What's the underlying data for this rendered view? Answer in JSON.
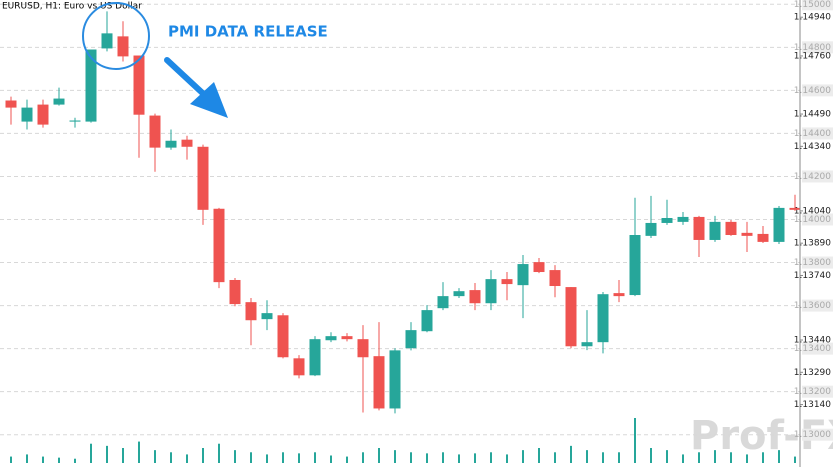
{
  "chart_data": {
    "type": "candlestick",
    "title": "EURUSD, H1:  Euro vs US Dollar",
    "annotation": "PMI DATA RELEASE",
    "watermark": "Prof-FX",
    "up_color": "#26a69a",
    "down_color": "#ef5350",
    "ylim": [
      1.1285,
      1.1502
    ],
    "yticks": [
      {
        "value": 1.15,
        "label": "1.15000"
      },
      {
        "value": 1.148,
        "label": "1.14800"
      },
      {
        "value": 1.146,
        "label": "1.14600"
      },
      {
        "value": 1.144,
        "label": "1.14400"
      },
      {
        "value": 1.142,
        "label": "1.14200"
      },
      {
        "value": 1.14,
        "label": "1.14000"
      },
      {
        "value": 1.138,
        "label": "1.13800"
      },
      {
        "value": 1.136,
        "label": "1.13600"
      },
      {
        "value": 1.134,
        "label": "1.13400"
      },
      {
        "value": 1.132,
        "label": "1.13200"
      },
      {
        "value": 1.13,
        "label": "1.13000"
      }
    ],
    "yticks_minor": [
      {
        "value": 1.1494,
        "label": "1.14940"
      },
      {
        "value": 1.1476,
        "label": "1.14760"
      },
      {
        "value": 1.1449,
        "label": "1.14490"
      },
      {
        "value": 1.1434,
        "label": "1.14340"
      },
      {
        "value": 1.1404,
        "label": "1.14040"
      },
      {
        "value": 1.1389,
        "label": "1.13890"
      },
      {
        "value": 1.1374,
        "label": "1.13740"
      },
      {
        "value": 1.1344,
        "label": "1.13440"
      },
      {
        "value": 1.1329,
        "label": "1.13290"
      },
      {
        "value": 1.1314,
        "label": "1.13140"
      }
    ],
    "grid": true,
    "open": [
      1.14553,
      1.14455,
      1.14534,
      1.14534,
      1.14455,
      1.14455,
      1.14795,
      1.14851,
      1.14762,
      1.14483,
      1.14334,
      1.14371,
      1.14338,
      1.1405,
      1.13719,
      1.13616,
      1.13537,
      1.13555,
      1.13355,
      1.13276,
      1.13439,
      1.13458,
      1.13444,
      1.13365,
      1.13122,
      1.13402,
      1.13481,
      1.13588,
      1.13644,
      1.13672,
      1.13611,
      1.13723,
      1.13695,
      1.13802,
      1.13765,
      1.13686,
      1.13411,
      1.1343,
      1.13658,
      1.13649,
      1.13924,
      1.13984,
      1.13989,
      1.14012,
      1.13905,
      1.13989,
      1.13938,
      1.13933,
      1.13896,
      1.14054
    ],
    "high": [
      1.14571,
      1.14557,
      1.14557,
      1.14613,
      1.14473,
      1.1479,
      1.14967,
      1.14921,
      1.14762,
      1.14492,
      1.14418,
      1.14389,
      1.14348,
      1.14054,
      1.13728,
      1.13635,
      1.13625,
      1.13565,
      1.1337,
      1.13458,
      1.13476,
      1.13472,
      1.13509,
      1.13523,
      1.13402,
      1.13523,
      1.13602,
      1.13709,
      1.13681,
      1.13705,
      1.13765,
      1.13756,
      1.13835,
      1.13821,
      1.13788,
      1.13686,
      1.13579,
      1.13663,
      1.13719,
      1.14101,
      1.1411,
      1.14092,
      1.14035,
      1.14017,
      1.14017,
      1.13998,
      1.13989,
      1.1397,
      1.14063,
      1.14115
    ],
    "low": [
      1.14441,
      1.14418,
      1.14427,
      1.14529,
      1.14427,
      1.1445,
      1.14781,
      1.14734,
      1.14287,
      1.14222,
      1.14324,
      1.14278,
      1.13975,
      1.13681,
      1.13597,
      1.13416,
      1.13486,
      1.13355,
      1.13262,
      1.13272,
      1.1343,
      1.13434,
      1.13103,
      1.13113,
      1.13099,
      1.13392,
      1.13476,
      1.13579,
      1.13635,
      1.13579,
      1.13579,
      1.13625,
      1.13542,
      1.13751,
      1.13639,
      1.13402,
      1.13393,
      1.13378,
      1.13616,
      1.13644,
      1.13914,
      1.13975,
      1.13975,
      1.13826,
      1.13896,
      1.13924,
      1.13849,
      1.13891,
      1.13886,
      1.1404
    ],
    "close": [
      1.1452,
      1.1452,
      1.14441,
      1.14562,
      1.1446,
      1.1479,
      1.14865,
      1.14758,
      1.14487,
      1.14334,
      1.14366,
      1.14338,
      1.14045,
      1.13709,
      1.13607,
      1.13532,
      1.13565,
      1.1336,
      1.13276,
      1.13444,
      1.13458,
      1.13444,
      1.1336,
      1.13122,
      1.13392,
      1.13486,
      1.13579,
      1.13644,
      1.13667,
      1.13611,
      1.13723,
      1.137,
      1.13793,
      1.13756,
      1.13691,
      1.13411,
      1.1343,
      1.13653,
      1.13644,
      1.13928,
      1.13984,
      1.14007,
      1.14012,
      1.13905,
      1.13989,
      1.13928,
      1.13924,
      1.13896,
      1.14054,
      1.14045
    ],
    "volume": [
      6,
      8,
      6,
      5,
      4,
      18,
      16,
      14,
      20,
      12,
      10,
      8,
      14,
      18,
      12,
      10,
      8,
      10,
      9,
      10,
      7,
      6,
      10,
      14,
      12,
      10,
      9,
      10,
      8,
      9,
      10,
      8,
      12,
      14,
      10,
      16,
      12,
      10,
      10,
      42,
      14,
      12,
      8,
      10,
      12,
      10,
      8,
      10,
      12,
      6
    ]
  }
}
